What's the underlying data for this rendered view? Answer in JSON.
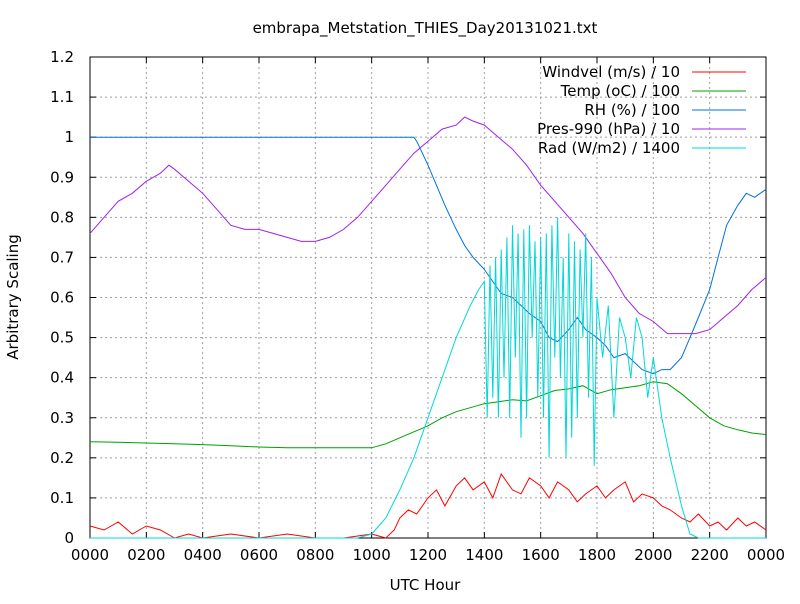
{
  "chart_data": {
    "type": "line",
    "title": "embrapa_Metstation_THIES_Day20131021.txt",
    "xlabel": "UTC Hour",
    "ylabel": "Arbitrary Scaling",
    "xlim": [
      0,
      24
    ],
    "ylim": [
      0,
      1.2
    ],
    "grid": true,
    "legend_position": "top-right",
    "x_tick_labels": [
      "0000",
      "0200",
      "0400",
      "0600",
      "0800",
      "1000",
      "1200",
      "1400",
      "1600",
      "1800",
      "2000",
      "2200",
      "0000"
    ],
    "x_tick_values": [
      0,
      2,
      4,
      6,
      8,
      10,
      12,
      14,
      16,
      18,
      20,
      22,
      24
    ],
    "y_tick_labels": [
      "0",
      "0.1",
      "0.2",
      "0.3",
      "0.4",
      "0.5",
      "0.6",
      "0.7",
      "0.8",
      "0.9",
      "1",
      "1.1",
      "1.2"
    ],
    "y_tick_values": [
      0,
      0.1,
      0.2,
      0.3,
      0.4,
      0.5,
      0.6,
      0.7,
      0.8,
      0.9,
      1.0,
      1.1,
      1.2
    ],
    "series": [
      {
        "name": "Windvel (m/s) / 10",
        "color": "#ff0000",
        "x": [
          0,
          0.5,
          1,
          1.5,
          2,
          2.5,
          3,
          3.5,
          4,
          5,
          6,
          7,
          8,
          9,
          10,
          10.5,
          10.8,
          11,
          11.3,
          11.6,
          12,
          12.3,
          12.6,
          13,
          13.3,
          13.6,
          14,
          14.3,
          14.6,
          15,
          15.3,
          15.6,
          16,
          16.3,
          16.6,
          17,
          17.3,
          17.6,
          18,
          18.3,
          18.6,
          19,
          19.3,
          19.6,
          20,
          20.3,
          20.6,
          21,
          21.3,
          21.6,
          22,
          22.3,
          22.6,
          23,
          23.3,
          23.6,
          24
        ],
        "values": [
          0.03,
          0.02,
          0.04,
          0.01,
          0.03,
          0.02,
          0.0,
          0.01,
          0.0,
          0.01,
          0.0,
          0.01,
          0.0,
          0.0,
          0.01,
          0.0,
          0.02,
          0.05,
          0.07,
          0.06,
          0.1,
          0.12,
          0.08,
          0.13,
          0.15,
          0.12,
          0.14,
          0.1,
          0.16,
          0.12,
          0.11,
          0.15,
          0.13,
          0.1,
          0.14,
          0.12,
          0.09,
          0.11,
          0.13,
          0.1,
          0.12,
          0.14,
          0.09,
          0.11,
          0.1,
          0.08,
          0.07,
          0.05,
          0.04,
          0.06,
          0.03,
          0.04,
          0.02,
          0.05,
          0.03,
          0.04,
          0.02
        ]
      },
      {
        "name": "Temp (oC) / 100",
        "color": "#00a000",
        "x": [
          0,
          1,
          2,
          3,
          4,
          5,
          6,
          7,
          8,
          9,
          10,
          10.5,
          11,
          11.5,
          12,
          12.5,
          13,
          13.5,
          14,
          14.5,
          15,
          15.5,
          16,
          16.5,
          17,
          17.5,
          18,
          18.5,
          19,
          19.5,
          20,
          20.5,
          21,
          21.5,
          22,
          22.5,
          23,
          23.5,
          24
        ],
        "values": [
          0.24,
          0.239,
          0.237,
          0.235,
          0.233,
          0.23,
          0.227,
          0.225,
          0.225,
          0.225,
          0.225,
          0.235,
          0.25,
          0.265,
          0.28,
          0.3,
          0.315,
          0.325,
          0.335,
          0.34,
          0.345,
          0.342,
          0.355,
          0.368,
          0.372,
          0.38,
          0.36,
          0.37,
          0.375,
          0.38,
          0.39,
          0.385,
          0.36,
          0.33,
          0.3,
          0.28,
          0.27,
          0.262,
          0.258
        ]
      },
      {
        "name": "RH (%) / 100",
        "color": "#0070e0",
        "x": [
          0,
          2,
          4,
          6,
          8,
          10,
          11,
          11.5,
          11.6,
          11.8,
          12,
          12.3,
          12.6,
          13,
          13.3,
          13.6,
          14,
          14.3,
          14.6,
          15,
          15.3,
          15.6,
          16,
          16.3,
          16.6,
          17,
          17.3,
          17.6,
          18,
          18.3,
          18.6,
          19,
          19.3,
          19.6,
          20,
          20.3,
          20.6,
          21,
          21.3,
          21.6,
          22,
          22.3,
          22.6,
          23,
          23.3,
          23.6,
          24
        ],
        "values": [
          1.0,
          1.0,
          1.0,
          1.0,
          1.0,
          1.0,
          1.0,
          1.0,
          0.99,
          0.96,
          0.93,
          0.88,
          0.83,
          0.77,
          0.73,
          0.7,
          0.67,
          0.64,
          0.61,
          0.6,
          0.58,
          0.56,
          0.54,
          0.5,
          0.49,
          0.52,
          0.55,
          0.52,
          0.5,
          0.48,
          0.45,
          0.46,
          0.44,
          0.42,
          0.41,
          0.42,
          0.42,
          0.45,
          0.5,
          0.55,
          0.62,
          0.7,
          0.78,
          0.83,
          0.86,
          0.85,
          0.87
        ]
      },
      {
        "name": "Pres-990 (hPa) / 10",
        "color": "#a020f0",
        "x": [
          0,
          0.5,
          1,
          1.5,
          2,
          2.5,
          2.8,
          3,
          3.5,
          4,
          4.5,
          5,
          5.5,
          6,
          6.5,
          7,
          7.5,
          8,
          8.5,
          9,
          9.5,
          10,
          10.5,
          11,
          11.5,
          12,
          12.5,
          13,
          13.3,
          13.6,
          14,
          14.5,
          15,
          15.5,
          16,
          16.5,
          17,
          17.5,
          18,
          18.5,
          19,
          19.5,
          20,
          20.5,
          21,
          21.5,
          22,
          22.5,
          23,
          23.5,
          24
        ],
        "values": [
          0.76,
          0.8,
          0.84,
          0.86,
          0.89,
          0.91,
          0.93,
          0.92,
          0.89,
          0.86,
          0.82,
          0.78,
          0.77,
          0.77,
          0.76,
          0.75,
          0.74,
          0.74,
          0.75,
          0.77,
          0.8,
          0.84,
          0.88,
          0.92,
          0.96,
          0.99,
          1.02,
          1.03,
          1.05,
          1.04,
          1.03,
          1.0,
          0.97,
          0.93,
          0.88,
          0.84,
          0.8,
          0.76,
          0.71,
          0.66,
          0.6,
          0.56,
          0.54,
          0.51,
          0.51,
          0.51,
          0.52,
          0.55,
          0.58,
          0.62,
          0.65
        ]
      },
      {
        "name": "Rad (W/m2) / 1400",
        "color": "#00d8d8",
        "x": [
          0,
          2,
          4,
          6,
          8,
          9,
          9.5,
          10,
          10.5,
          11,
          11.5,
          12,
          12.5,
          13,
          13.5,
          13.8,
          14,
          14.1,
          14.2,
          14.3,
          14.4,
          14.5,
          14.6,
          14.7,
          14.8,
          14.9,
          15,
          15.1,
          15.2,
          15.3,
          15.4,
          15.5,
          15.6,
          15.7,
          15.8,
          15.9,
          16,
          16.1,
          16.2,
          16.3,
          16.4,
          16.5,
          16.6,
          16.7,
          16.8,
          16.9,
          17,
          17.1,
          17.2,
          17.3,
          17.4,
          17.5,
          17.6,
          17.7,
          17.8,
          17.9,
          18,
          18.2,
          18.4,
          18.6,
          18.8,
          19,
          19.2,
          19.4,
          19.6,
          19.8,
          20,
          20.3,
          20.6,
          21,
          21.3,
          21.6,
          22,
          23,
          24
        ],
        "values": [
          0,
          0,
          0,
          0,
          0,
          0,
          0.0,
          0.01,
          0.05,
          0.12,
          0.2,
          0.3,
          0.4,
          0.5,
          0.58,
          0.62,
          0.64,
          0.3,
          0.68,
          0.35,
          0.7,
          0.3,
          0.72,
          0.4,
          0.75,
          0.3,
          0.78,
          0.45,
          0.76,
          0.25,
          0.77,
          0.3,
          0.78,
          0.5,
          0.74,
          0.35,
          0.75,
          0.3,
          0.76,
          0.2,
          0.78,
          0.45,
          0.8,
          0.4,
          0.7,
          0.2,
          0.76,
          0.25,
          0.74,
          0.3,
          0.72,
          0.5,
          0.76,
          0.35,
          0.7,
          0.18,
          0.6,
          0.45,
          0.58,
          0.3,
          0.55,
          0.5,
          0.4,
          0.55,
          0.5,
          0.35,
          0.45,
          0.3,
          0.2,
          0.08,
          0.01,
          0.0,
          0.0,
          0.0,
          0.0
        ]
      }
    ]
  }
}
